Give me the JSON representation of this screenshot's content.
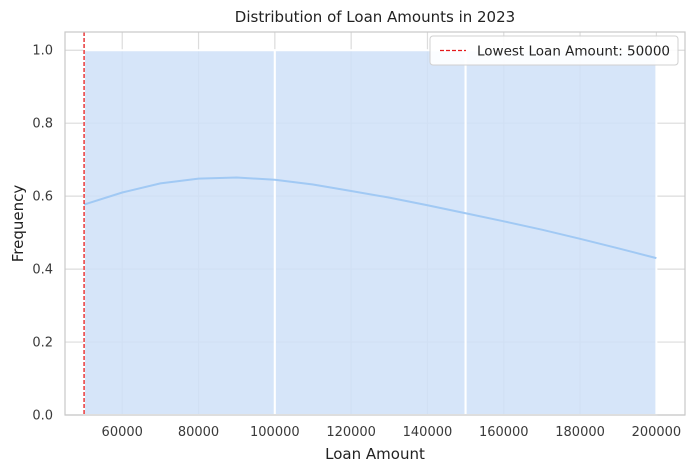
{
  "chart_data": {
    "type": "bar",
    "title": "Distribution of Loan Amounts in 2023",
    "xlabel": "Loan Amount",
    "ylabel": "Frequency",
    "xlim": [
      45000,
      207500
    ],
    "ylim": [
      0,
      1.05
    ],
    "grid": true,
    "bins": [
      {
        "x0": 50000,
        "x1": 100000,
        "value": 1.0
      },
      {
        "x0": 100000,
        "x1": 150000,
        "value": 1.0
      },
      {
        "x0": 150000,
        "x1": 200000,
        "value": 1.0
      }
    ],
    "kde": {
      "x": [
        50000,
        60000,
        70000,
        80000,
        90000,
        100000,
        110000,
        120000,
        130000,
        140000,
        150000,
        160000,
        170000,
        180000,
        190000,
        200000
      ],
      "y": [
        0.577,
        0.61,
        0.635,
        0.648,
        0.651,
        0.645,
        0.632,
        0.614,
        0.596,
        0.575,
        0.553,
        0.531,
        0.508,
        0.483,
        0.457,
        0.43
      ]
    },
    "reference_line": {
      "x": 50000,
      "label": "Lowest Loan Amount: 50000",
      "color": "#e41a1c"
    },
    "x_ticks": [
      "60000",
      "80000",
      "100000",
      "120000",
      "140000",
      "160000",
      "180000",
      "200000"
    ],
    "y_ticks": [
      "0.0",
      "0.2",
      "0.4",
      "0.6",
      "0.8",
      "1.0"
    ],
    "legend_position": "top-right",
    "colors": {
      "bar": "#cfe1f8",
      "kde": "#a1c9f4",
      "grid": "#dcdcdc",
      "axes_border": "#c8c8c8"
    }
  }
}
